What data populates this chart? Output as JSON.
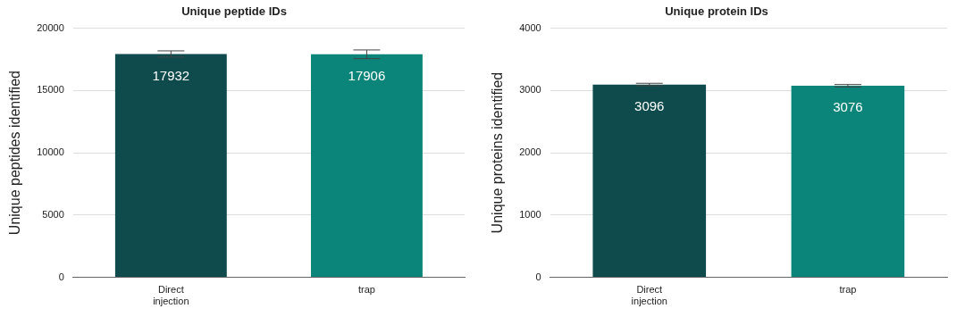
{
  "chart_data": [
    {
      "type": "bar",
      "title": "Unique peptide IDs",
      "ylabel": "Unique peptides identified",
      "categories": [
        "Direct injection",
        "trap"
      ],
      "values": [
        17932,
        17906
      ],
      "colors": [
        "#0f4b4c",
        "#0b857a"
      ],
      "errors": [
        250,
        350
      ],
      "ylim": [
        0,
        20000
      ],
      "yticks": [
        0,
        5000,
        10000,
        15000,
        20000
      ],
      "grid": "y",
      "data_labels": true
    },
    {
      "type": "bar",
      "title": "Unique protein IDs",
      "ylabel": "Unique proteins identified",
      "categories": [
        "Direct injection",
        "trap"
      ],
      "values": [
        3096,
        3076
      ],
      "colors": [
        "#0f4b4c",
        "#0b857a"
      ],
      "errors": [
        20,
        20
      ],
      "ylim": [
        0,
        4000
      ],
      "yticks": [
        0,
        1000,
        2000,
        3000,
        4000
      ],
      "grid": "y",
      "data_labels": true
    }
  ]
}
